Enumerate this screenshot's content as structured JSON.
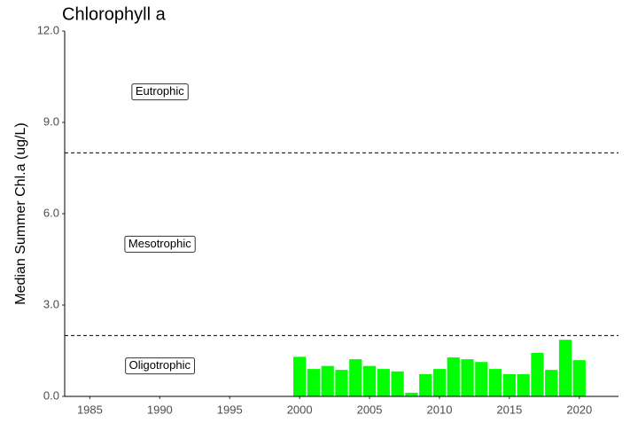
{
  "chart_data": {
    "type": "bar",
    "title": "Chlorophyll a",
    "y_label": "Median Summer Chl.a (ug/L)",
    "x": [
      2000,
      2001,
      2002,
      2003,
      2004,
      2005,
      2006,
      2007,
      2008,
      2009,
      2010,
      2011,
      2012,
      2013,
      2014,
      2015,
      2016,
      2017,
      2018,
      2019,
      2020
    ],
    "values": [
      1.3,
      0.9,
      1.0,
      0.87,
      1.22,
      1.0,
      0.9,
      0.82,
      0.12,
      0.73,
      0.9,
      1.28,
      1.22,
      1.13,
      0.9,
      0.73,
      0.73,
      1.43,
      0.87,
      1.86,
      1.19
    ],
    "color": "#00ff00",
    "xlim": [
      1983.2,
      2022.8
    ],
    "xticks": [
      1985,
      1990,
      1995,
      2000,
      2005,
      2010,
      2015,
      2020
    ],
    "ylim": [
      0,
      12
    ],
    "yticks": [
      {
        "value": 0,
        "label": "0.0"
      },
      {
        "value": 3,
        "label": "3.0"
      },
      {
        "value": 6,
        "label": "6.0"
      },
      {
        "value": 9,
        "label": "9.0"
      },
      {
        "value": 12,
        "label": "12.0"
      }
    ],
    "hlines": [
      2,
      8
    ],
    "annotations": [
      {
        "text": "Eutrophic",
        "x": 1990,
        "y": 10
      },
      {
        "text": "Mesotrophic",
        "x": 1990,
        "y": 5
      },
      {
        "text": "Oligotrophic",
        "x": 1990,
        "y": 1
      }
    ],
    "grid": false
  }
}
